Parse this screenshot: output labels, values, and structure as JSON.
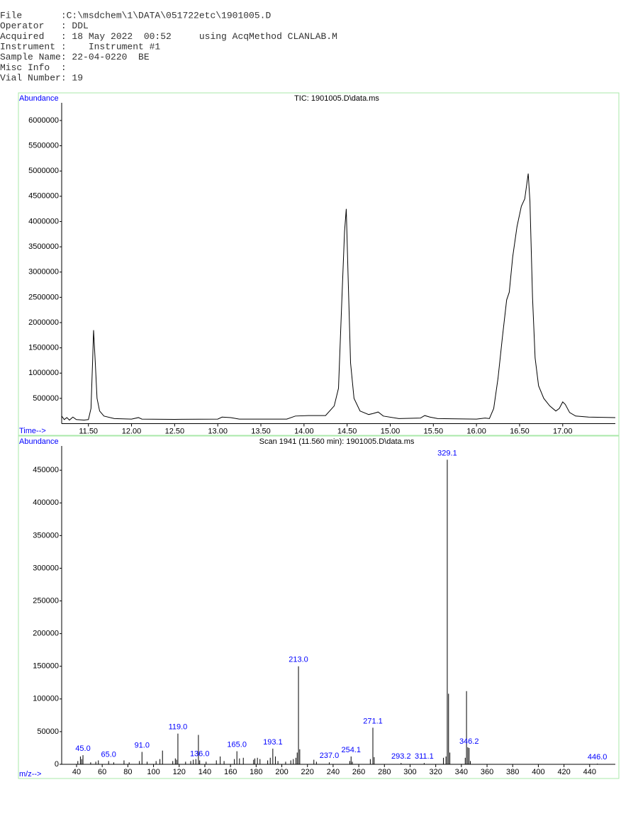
{
  "header": {
    "lines": [
      "File       :C:\\msdchem\\1\\DATA\\051722etc\\1901005.D",
      "Operator   : DDL",
      "Acquired   : 18 May 2022  00:52     using AcqMethod CLANLAB.M",
      "Instrument :    Instrument #1",
      "Sample Name: 22-04-0220  BE",
      "Misc Info  :",
      "Vial Number: 19"
    ]
  },
  "chart_data": [
    {
      "type": "line",
      "title": "TIC: 1901005.D\\data.ms",
      "ylabel": "Abundance",
      "xlabel": "Time-->",
      "color": "#000000",
      "x": [
        11.19,
        11.22,
        11.25,
        11.28,
        11.32,
        11.36,
        11.45,
        11.5,
        11.53,
        11.55,
        11.56,
        11.58,
        11.6,
        11.63,
        11.68,
        11.8,
        12.0,
        12.08,
        12.12,
        12.5,
        13.0,
        13.05,
        13.15,
        13.25,
        13.8,
        13.9,
        14.05,
        14.25,
        14.35,
        14.4,
        14.44,
        14.47,
        14.49,
        14.51,
        14.54,
        14.58,
        14.65,
        14.75,
        14.8,
        14.86,
        14.92,
        15.1,
        15.35,
        15.4,
        15.46,
        15.55,
        16.0,
        16.1,
        16.15,
        16.2,
        16.25,
        16.3,
        16.35,
        16.38,
        16.42,
        16.47,
        16.52,
        16.56,
        16.6,
        16.62,
        16.65,
        16.68,
        16.72,
        16.78,
        16.85,
        16.92,
        16.96,
        17.0,
        17.03,
        17.08,
        17.15,
        17.3,
        17.61
      ],
      "values": [
        150000,
        80000,
        120000,
        70000,
        130000,
        80000,
        70000,
        80000,
        300000,
        1300000,
        1850000,
        1200000,
        500000,
        250000,
        150000,
        100000,
        90000,
        120000,
        90000,
        85000,
        90000,
        130000,
        120000,
        90000,
        90000,
        150000,
        160000,
        160000,
        350000,
        700000,
        2500000,
        3800000,
        4250000,
        3000000,
        1200000,
        500000,
        250000,
        180000,
        200000,
        230000,
        150000,
        100000,
        110000,
        160000,
        130000,
        100000,
        90000,
        110000,
        100000,
        300000,
        900000,
        1700000,
        2450000,
        2600000,
        3300000,
        3900000,
        4300000,
        4450000,
        4950000,
        4400000,
        2500000,
        1300000,
        750000,
        500000,
        350000,
        250000,
        300000,
        430000,
        380000,
        220000,
        150000,
        130000,
        120000
      ],
      "xlim": [
        11.19,
        17.61
      ],
      "ylim": [
        0,
        6350000
      ],
      "xticks": [
        {
          "value": 11.5,
          "label": "11.50"
        },
        {
          "value": 12,
          "label": "12.00"
        },
        {
          "value": 12.5,
          "label": "12.50"
        },
        {
          "value": 13,
          "label": "13.00"
        },
        {
          "value": 13.5,
          "label": "13.50"
        },
        {
          "value": 14,
          "label": "14.00"
        },
        {
          "value": 14.5,
          "label": "14.50"
        },
        {
          "value": 15,
          "label": "15.00"
        },
        {
          "value": 15.5,
          "label": "15.50"
        },
        {
          "value": 16,
          "label": "16.00"
        },
        {
          "value": 16.5,
          "label": "16.50"
        },
        {
          "value": 17,
          "label": "17.00"
        }
      ],
      "yticks": [
        500000,
        1000000,
        1500000,
        2000000,
        2500000,
        3000000,
        3500000,
        4000000,
        4500000,
        5000000,
        5500000,
        6000000
      ]
    },
    {
      "type": "spectrum",
      "title": "Scan 1941 (11.560 min): 1901005.D\\data.ms",
      "ylabel": "Abundance",
      "xlabel": "m/z-->",
      "color": "#000000",
      "label_color": "#0000ff",
      "x": [
        41,
        43,
        44,
        45,
        51,
        55,
        57,
        65,
        69,
        77,
        81,
        89,
        91,
        95,
        102,
        105,
        107,
        115,
        117,
        118,
        119,
        125,
        129,
        131,
        133,
        135,
        136,
        141,
        149,
        152,
        155,
        163,
        165,
        167,
        170,
        178,
        179,
        181,
        183,
        189,
        191,
        193,
        195,
        197,
        203,
        207,
        209,
        211,
        212,
        213,
        214,
        225,
        227,
        237,
        253,
        254,
        255,
        269,
        271,
        272,
        293,
        311,
        326,
        328,
        329,
        330,
        331,
        343,
        344,
        345,
        346,
        347,
        446
      ],
      "values": [
        5000,
        12000,
        8000,
        14000,
        3000,
        4000,
        6000,
        5000,
        3000,
        6000,
        3000,
        5000,
        19000,
        4000,
        5000,
        8000,
        21000,
        5000,
        9000,
        7000,
        47000,
        4000,
        5000,
        7000,
        8000,
        45000,
        6000,
        4000,
        6000,
        12000,
        5000,
        8000,
        20000,
        9000,
        10000,
        7000,
        9000,
        10000,
        8000,
        6000,
        10000,
        24000,
        12000,
        5000,
        4000,
        6000,
        8000,
        10000,
        18000,
        150000,
        23000,
        7000,
        4000,
        3000,
        5000,
        12000,
        4000,
        8000,
        56000,
        11000,
        2000,
        2000,
        10000,
        12000,
        466000,
        108000,
        18000,
        10000,
        112000,
        26000,
        25000,
        5000,
        1000
      ],
      "peak_labels": [
        null,
        null,
        null,
        "45.0",
        null,
        null,
        null,
        "65.0",
        null,
        null,
        null,
        null,
        "91.0",
        null,
        null,
        null,
        null,
        null,
        null,
        null,
        "119.0",
        null,
        null,
        null,
        null,
        null,
        "136.0",
        null,
        null,
        null,
        null,
        null,
        "165.0",
        null,
        null,
        null,
        null,
        null,
        null,
        null,
        null,
        "193.1",
        null,
        null,
        null,
        null,
        null,
        null,
        null,
        "213.0",
        null,
        null,
        null,
        "237.0",
        null,
        "254.1",
        null,
        null,
        "271.1",
        null,
        "293.2",
        "311.1",
        null,
        null,
        "329.1",
        null,
        null,
        null,
        null,
        null,
        "346.2",
        null,
        "446.0"
      ],
      "xlim": [
        28.4,
        460
      ],
      "ylim": [
        0,
        486000
      ],
      "xticks": [
        40,
        60,
        80,
        100,
        120,
        140,
        160,
        180,
        200,
        220,
        240,
        260,
        280,
        300,
        320,
        340,
        360,
        380,
        400,
        420,
        440
      ],
      "yticks": [
        0,
        50000,
        100000,
        150000,
        200000,
        250000,
        300000,
        350000,
        400000,
        450000
      ]
    }
  ]
}
